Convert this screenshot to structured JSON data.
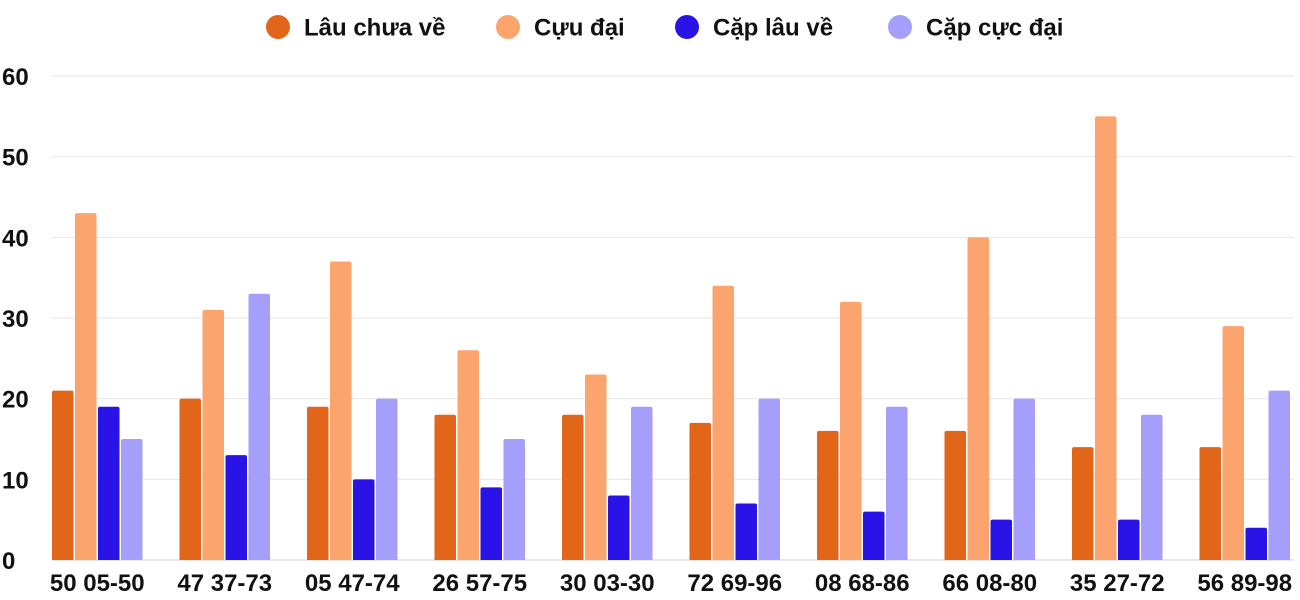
{
  "chart_data": {
    "type": "bar",
    "title": "",
    "xlabel": "",
    "ylabel": "",
    "ylim": [
      0,
      60
    ],
    "yticks": [
      0,
      10,
      20,
      30,
      40,
      50,
      60
    ],
    "grid": true,
    "legend_position": "top-center",
    "categories": [
      "50 05-50",
      "47 37-73",
      "05 47-74",
      "26 57-75",
      "30 03-30",
      "72 69-96",
      "08 68-86",
      "66 08-80",
      "35 27-72",
      "56 89-98"
    ],
    "series": [
      {
        "name": "Lâu chưa về",
        "color": "#e2661a",
        "values": [
          21,
          20,
          19,
          18,
          18,
          17,
          16,
          16,
          14,
          14
        ]
      },
      {
        "name": "Cựu đại",
        "color": "#fba46e",
        "values": [
          43,
          31,
          37,
          26,
          23,
          34,
          32,
          40,
          55,
          29
        ]
      },
      {
        "name": "Cặp lâu về",
        "color": "#2a13e6",
        "values": [
          19,
          13,
          10,
          9,
          8,
          7,
          6,
          5,
          5,
          4
        ]
      },
      {
        "name": "Cặp cực đại",
        "color": "#a59efb",
        "values": [
          15,
          33,
          20,
          15,
          19,
          20,
          19,
          20,
          18,
          21
        ]
      }
    ]
  }
}
